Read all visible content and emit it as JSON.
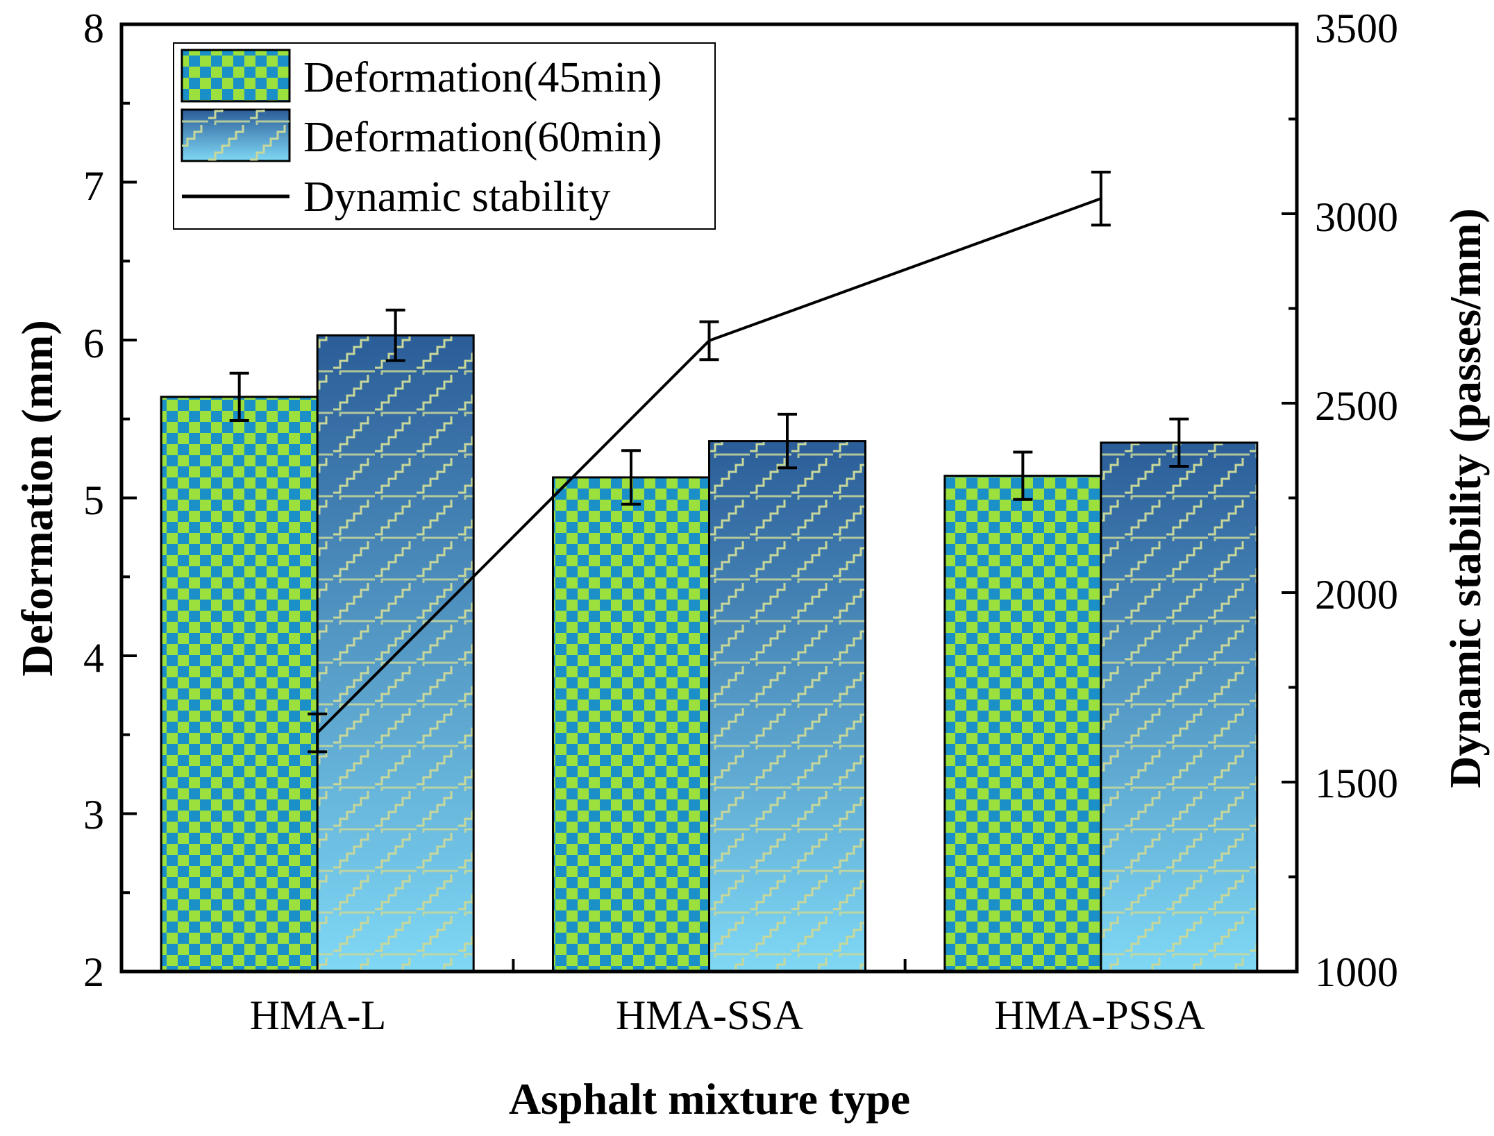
{
  "chart_data": {
    "type": "bar+line",
    "categories": [
      "HMA-L",
      "HMA-SSA",
      "HMA-PSSA"
    ],
    "xlabel": "Asphalt mixture type",
    "ylabel_left": "Deformation (mm)",
    "ylabel_right": "Dynamic stability (passes/mm)",
    "ylim_left": [
      2,
      8
    ],
    "ylim_right": [
      1000,
      3500
    ],
    "yticks_left": [
      "2",
      "3",
      "4",
      "5",
      "6",
      "7",
      "8"
    ],
    "yticks_right": [
      "1000",
      "1500",
      "2000",
      "2500",
      "3000",
      "3500"
    ],
    "series": [
      {
        "name": "Deformation(45min)",
        "kind": "bar",
        "axis": "left",
        "values": [
          5.64,
          5.13,
          5.14
        ],
        "errors": [
          0.15,
          0.17,
          0.15
        ],
        "color": "#9be03c",
        "pattern_color": "#1a8fc8"
      },
      {
        "name": "Deformation(60min)",
        "kind": "bar",
        "axis": "left",
        "values": [
          6.03,
          5.36,
          5.35
        ],
        "errors": [
          0.16,
          0.17,
          0.15
        ],
        "color": "#7fd8f5",
        "color_top": "#2b5d98",
        "pattern_color": "#c8d89a"
      },
      {
        "name": "Dynamic stability",
        "kind": "line",
        "axis": "right",
        "values": [
          1630,
          2665,
          3040
        ],
        "errors": [
          50,
          50,
          70
        ],
        "color": "#000000"
      }
    ]
  }
}
